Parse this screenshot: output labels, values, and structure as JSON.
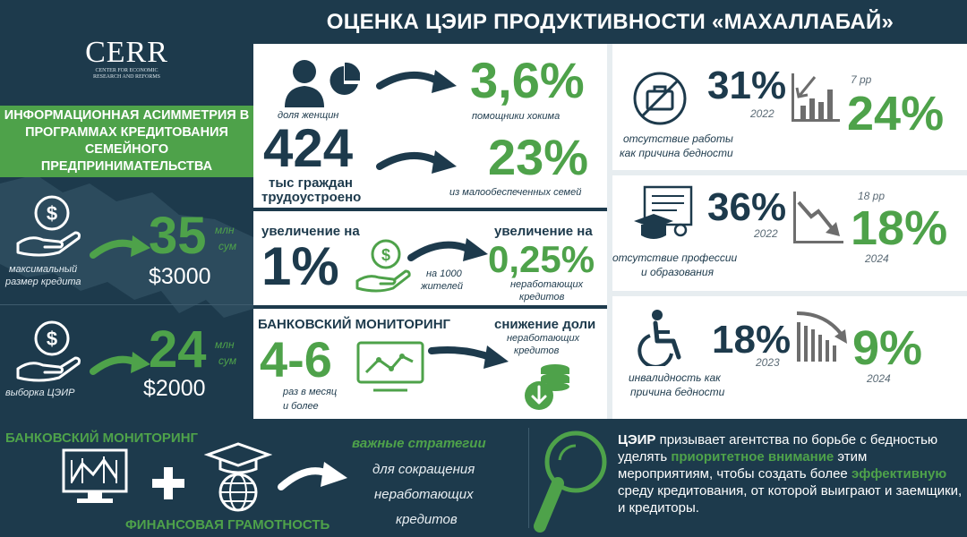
{
  "header": {
    "title": "ОЦЕНКА ЦЭИР ПРОДУКТИВНОСТИ «МАХАЛЛАБАЙ»"
  },
  "logo": {
    "name": "CERR",
    "subtitle_line1": "CENTER FOR ECONOMIC",
    "subtitle_line2": "RESEARCH AND REFORMS"
  },
  "left": {
    "banner": "ИНФОРМАЦИОННАЯ АСИММЕТРИЯ В ПРОГРАММАХ КРЕДИТОВАНИЯ СЕМЕЙНОГО ПРЕДПРИНИМАТЕЛЬСТВА",
    "block1": {
      "value": "35",
      "unit_top": "млн",
      "unit_bottom": "сум",
      "usd": "$3000",
      "caption_line1": "максимальный",
      "caption_line2": "размер кредита"
    },
    "block2": {
      "value": "24",
      "unit_top": "млн",
      "unit_bottom": "сум",
      "usd": "$2000",
      "caption": "выборка ЦЭИР"
    }
  },
  "middle": {
    "women": {
      "label": "доля женщин",
      "value": "3,6%",
      "caption": "помощники хокима"
    },
    "employed": {
      "value": "424",
      "label_line1": "тыс граждан",
      "label_line2": "трудоустроено",
      "pct": "23%",
      "caption": "из малообеспеченных семей"
    },
    "increase": {
      "left_title": "увеличение на",
      "left_value": "1%",
      "per": "на 1000",
      "per2": "жителей",
      "right_title": "увеличение на",
      "right_value": "0,25%",
      "right_caption1": "неработающих",
      "right_caption2": "кредитов"
    },
    "monitoring": {
      "title": "БАНКОВСКИЙ МОНИТОРИНГ",
      "value": "4-6",
      "caption1": "раз в месяц",
      "caption2": "и более",
      "right_title": "снижение доли",
      "right_caption1": "неработающих",
      "right_caption2": "кредитов"
    }
  },
  "right": {
    "row1": {
      "from": "31%",
      "from_year": "2022",
      "delta": "7 pp",
      "to": "24%",
      "label1": "отсутствие работы",
      "label2": "как причина бедности"
    },
    "row2": {
      "from": "36%",
      "from_year": "2022",
      "delta": "18 pp",
      "to": "18%",
      "to_year": "2024",
      "label1": "отсутствие профессии",
      "label2": "и образования"
    },
    "row3": {
      "from": "18%",
      "from_year": "2023",
      "to": "9%",
      "to_year": "2024",
      "label1": "инвалидность как",
      "label2": "причина бедности"
    }
  },
  "bottom": {
    "monitoring": "БАНКОВСКИЙ МОНИТОРИНГ",
    "literacy": "ФИНАНСОВАЯ ГРАМОТНОСТЬ",
    "strategies_title": "важные стратегии",
    "strategies_line1": "для сокращения",
    "strategies_line2": "неработающих",
    "strategies_line3": "кредитов",
    "cta": {
      "p1": "ЦЭИР",
      "p2": " призывает агентства по борьбе с бедностью уделять ",
      "p3": "приоритетное внимание",
      "p4": " этим мероприятиям, чтобы создать более ",
      "p5": "эффективную",
      "p6": " среду кредитования, от которой выиграют и заемщики, и кредиторы."
    }
  },
  "colors": {
    "navy": "#1d3a4c",
    "green": "#4ea24a",
    "white": "#ffffff",
    "grey": "#6d6d6d"
  }
}
